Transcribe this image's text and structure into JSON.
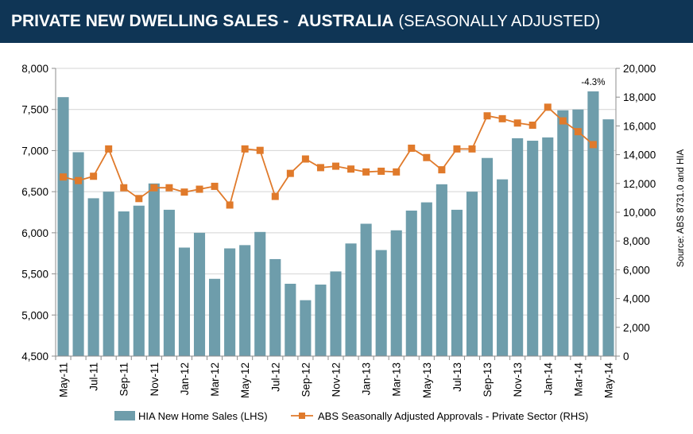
{
  "header": {
    "title_main": "PRIVATE NEW DWELLING SALES -  AUSTRALIA",
    "title_sub": "(SEASONALLY ADJUSTED)"
  },
  "colors": {
    "header_bg": "#0f3555",
    "bar": "#6e9dab",
    "line": "#e07a2b"
  },
  "chart_data": {
    "type": "bar",
    "source_note": "Source: ABS 8731.0 and HIA",
    "annotation": {
      "text": "-4.3%",
      "category": "Apr-14"
    },
    "categories": [
      "May-11",
      "Jun-11",
      "Jul-11",
      "Aug-11",
      "Sep-11",
      "Oct-11",
      "Nov-11",
      "Dec-11",
      "Jan-12",
      "Feb-12",
      "Mar-12",
      "Apr-12",
      "May-12",
      "Jun-12",
      "Jul-12",
      "Aug-12",
      "Sep-12",
      "Oct-12",
      "Nov-12",
      "Dec-12",
      "Jan-13",
      "Feb-13",
      "Mar-13",
      "Apr-13",
      "May-13",
      "Jun-13",
      "Jul-13",
      "Aug-13",
      "Sep-13",
      "Oct-13",
      "Nov-13",
      "Dec-13",
      "Jan-14",
      "Feb-14",
      "Mar-14",
      "Apr-14",
      "May-14"
    ],
    "tick_labels": [
      "May-11",
      "",
      "Jul-11",
      "",
      "Sep-11",
      "",
      "Nov-11",
      "",
      "Jan-12",
      "",
      "Mar-12",
      "",
      "May-12",
      "",
      "Jul-12",
      "",
      "Sep-12",
      "",
      "Nov-12",
      "",
      "Jan-13",
      "",
      "Mar-13",
      "",
      "May-13",
      "",
      "Jul-13",
      "",
      "Sep-13",
      "",
      "Nov-13",
      "",
      "Jan-14",
      "",
      "Mar-14",
      "",
      "May-14"
    ],
    "series": [
      {
        "name": "HIA New Home Sales (LHS)",
        "type": "bar",
        "axis": "left",
        "values": [
          7650,
          6980,
          6420,
          6500,
          6260,
          6330,
          6600,
          6280,
          5820,
          6000,
          5440,
          5810,
          5850,
          6010,
          5680,
          5380,
          5180,
          5370,
          5530,
          5870,
          6110,
          5790,
          6030,
          6270,
          6370,
          6590,
          6280,
          6500,
          6910,
          6650,
          7150,
          7120,
          7160,
          7490,
          7500,
          7720,
          7380
        ]
      },
      {
        "name": "ABS Seasonally Adjusted Approvals - Private Sector (RHS)",
        "type": "line",
        "axis": "right",
        "values": [
          12450,
          12200,
          12500,
          14400,
          11700,
          10950,
          11700,
          11700,
          11400,
          11600,
          11800,
          10500,
          14400,
          14300,
          11100,
          12700,
          13700,
          13100,
          13200,
          13000,
          12800,
          12850,
          12800,
          14450,
          13800,
          12950,
          14400,
          14400,
          16700,
          16500,
          16200,
          16050,
          17300,
          16350,
          15600,
          14700,
          null
        ]
      }
    ],
    "y_left": {
      "min": 4500,
      "max": 8000,
      "ticks": [
        "4,500",
        "5,000",
        "5,500",
        "6,000",
        "6,500",
        "7,000",
        "7,500",
        "8,000"
      ]
    },
    "y_right": {
      "min": 0,
      "max": 20000,
      "ticks": [
        "0",
        "2,000",
        "4,000",
        "6,000",
        "8,000",
        "10,000",
        "12,000",
        "14,000",
        "16,000",
        "18,000",
        "20,000"
      ]
    },
    "grid": "horizontal",
    "legend": "bottom"
  }
}
